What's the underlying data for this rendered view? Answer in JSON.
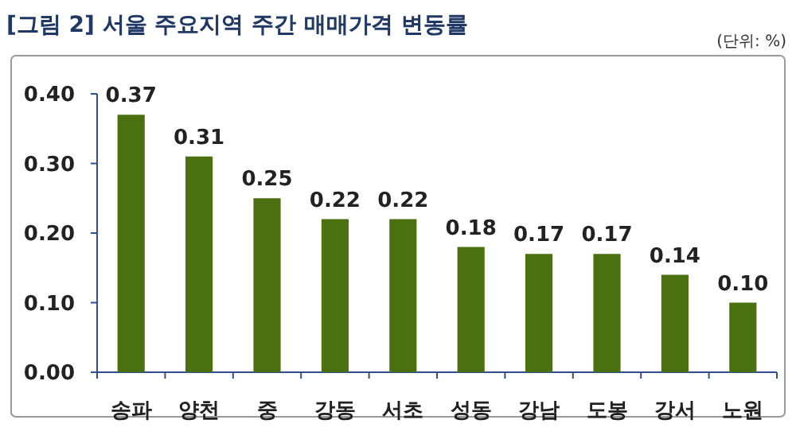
{
  "chart_data": {
    "type": "bar",
    "title": "[그림 2] 서울 주요지역 주간 매매가격 변동률",
    "annotations": [
      "(단위: %)"
    ],
    "categories": [
      "송파",
      "양천",
      "중",
      "강동",
      "서초",
      "성동",
      "강남",
      "도봉",
      "강서",
      "노원"
    ],
    "values": [
      0.37,
      0.31,
      0.25,
      0.22,
      0.22,
      0.18,
      0.17,
      0.17,
      0.14,
      0.1
    ],
    "color": "#4a7010",
    "value_labels": [
      "0.37",
      "0.31",
      "0.25",
      "0.22",
      "0.22",
      "0.18",
      "0.17",
      "0.17",
      "0.14",
      "0.10"
    ],
    "ylim": [
      0,
      0.4
    ],
    "yticks": [
      {
        "value": 0,
        "label": "0.00"
      },
      {
        "value": 0.1,
        "label": "0.10"
      },
      {
        "value": 0.2,
        "label": "0.20"
      },
      {
        "value": 0.3,
        "label": "0.30"
      },
      {
        "value": 0.4,
        "label": "0.40"
      }
    ]
  }
}
